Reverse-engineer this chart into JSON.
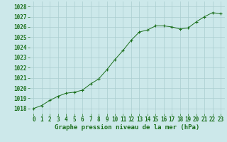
{
  "x": [
    0,
    1,
    2,
    3,
    4,
    5,
    6,
    7,
    8,
    9,
    10,
    11,
    12,
    13,
    14,
    15,
    16,
    17,
    18,
    19,
    20,
    21,
    22,
    23
  ],
  "y": [
    1018.0,
    1018.3,
    1018.8,
    1019.2,
    1019.5,
    1019.6,
    1019.8,
    1020.4,
    1020.9,
    1021.8,
    1022.8,
    1023.7,
    1024.7,
    1025.5,
    1025.7,
    1026.1,
    1026.1,
    1026.0,
    1025.8,
    1025.9,
    1026.5,
    1027.0,
    1027.4,
    1027.3
  ],
  "line_color": "#1a6e1a",
  "marker_color": "#1a6e1a",
  "bg_color": "#cce8ea",
  "grid_color": "#aacdd0",
  "xlabel": "Graphe pression niveau de la mer (hPa)",
  "xlabel_color": "#1a6e1a",
  "tick_color": "#1a6e1a",
  "ylim_min": 1017.5,
  "ylim_max": 1028.5,
  "xlim_min": -0.5,
  "xlim_max": 23.5,
  "yticks": [
    1018,
    1019,
    1020,
    1021,
    1022,
    1023,
    1024,
    1025,
    1026,
    1027,
    1028
  ],
  "xticks": [
    0,
    1,
    2,
    3,
    4,
    5,
    6,
    7,
    8,
    9,
    10,
    11,
    12,
    13,
    14,
    15,
    16,
    17,
    18,
    19,
    20,
    21,
    22,
    23
  ],
  "xlabel_fontsize": 6.5,
  "tick_fontsize": 5.5
}
